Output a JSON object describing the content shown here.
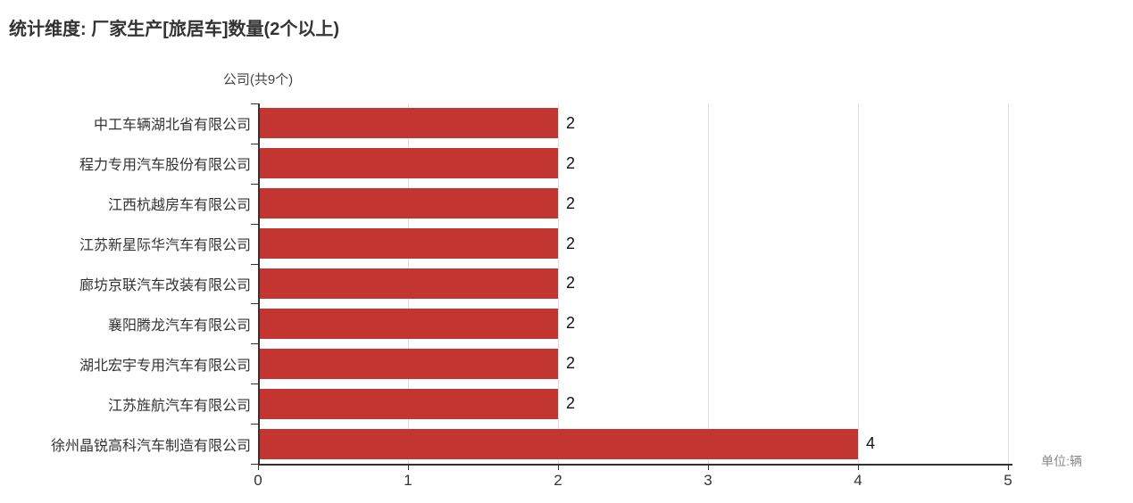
{
  "header": {
    "title": "统计维度: 厂家生产[旅居车]数量(2个以上)"
  },
  "chart_data": {
    "type": "bar",
    "orientation": "horizontal",
    "title": "统计维度: 厂家生产[旅居车]数量(2个以上)",
    "axis_name": "公司(共9个)",
    "unit_label": "单位:辆",
    "categories": [
      "中工车辆湖北省有限公司",
      "程力专用汽车股份有限公司",
      "江西杭越房车有限公司",
      "江苏新星际华汽车有限公司",
      "廊坊京联汽车改装有限公司",
      "襄阳腾龙汽车有限公司",
      "湖北宏宇专用汽车有限公司",
      "江苏旌航汽车有限公司",
      "徐州晶锐高科汽车制造有限公司"
    ],
    "values": [
      2,
      2,
      2,
      2,
      2,
      2,
      2,
      2,
      4
    ],
    "xlim": [
      0,
      5
    ],
    "x_ticks": [
      0,
      1,
      2,
      3,
      4,
      5
    ],
    "grid": true,
    "legend": false,
    "value_labels": true,
    "colors": {
      "bar": "#c23531",
      "axis": "#333333",
      "gridline": "#dddddd",
      "value_text": "#111111",
      "unit_text": "#888888"
    }
  }
}
